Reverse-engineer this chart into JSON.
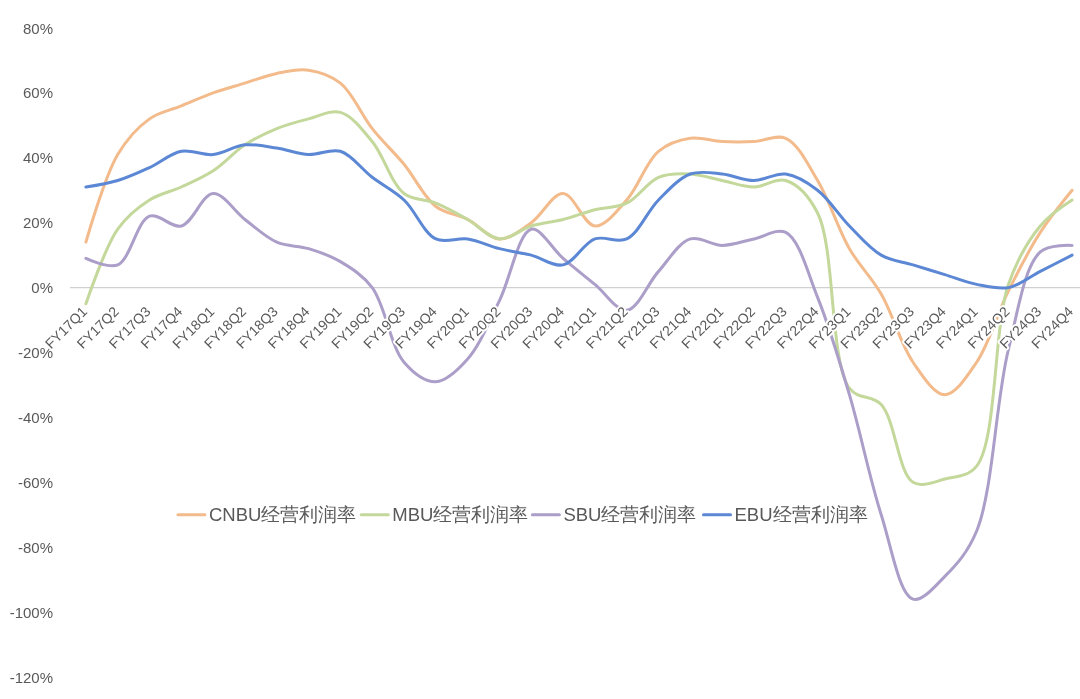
{
  "chart_data": {
    "type": "line",
    "categories": [
      "FY17Q1",
      "FY17Q2",
      "FY17Q3",
      "FY17Q4",
      "FY18Q1",
      "FY18Q2",
      "FY18Q3",
      "FY18Q4",
      "FY19Q1",
      "FY19Q2",
      "FY19Q3",
      "FY19Q4",
      "FY20Q1",
      "FY20Q2",
      "FY20Q3",
      "FY20Q4",
      "FY21Q1",
      "FY21Q2",
      "FY21Q3",
      "FY21Q4",
      "FY22Q1",
      "FY22Q2",
      "FY22Q3",
      "FY22Q4",
      "FY23Q1",
      "FY23Q2",
      "FY23Q3",
      "FY23Q4",
      "FY24Q1",
      "FY24Q2",
      "FY24Q3",
      "FY24Q4"
    ],
    "series": [
      {
        "name": "CNBU经营利润率",
        "color": "#f3bb8b",
        "values": [
          14,
          41,
          52,
          56,
          60,
          63,
          66,
          67,
          63,
          49,
          38,
          25,
          21,
          15,
          20,
          29,
          19,
          27,
          42,
          46,
          45,
          45,
          46,
          33,
          12,
          -2,
          -23,
          -33,
          -23,
          -1,
          17,
          30
        ]
      },
      {
        "name": "MBU经营利润率",
        "color": "#c3d89a",
        "values": [
          -5,
          18,
          27,
          31,
          36,
          44,
          49,
          52,
          54,
          45,
          29,
          26,
          21,
          15,
          19,
          21,
          24,
          26,
          34,
          35,
          33,
          31,
          33,
          23,
          -31,
          -36,
          -60,
          -59,
          -55,
          1,
          19,
          27
        ]
      },
      {
        "name": "SBU经营利润率",
        "color": "#ab9ec9",
        "values": [
          9,
          7,
          22,
          19,
          29,
          21,
          14,
          12,
          8,
          0,
          -23,
          -29,
          -22,
          -4,
          18,
          9,
          1,
          -7,
          5,
          15,
          13,
          15,
          17,
          -3,
          -33,
          -70,
          -96,
          -89,
          -75,
          -19,
          11,
          13
        ]
      },
      {
        "name": "EBU经营利润率",
        "color": "#5b87d4",
        "values": [
          31,
          33,
          37,
          42,
          41,
          44,
          43,
          41,
          42,
          34,
          27,
          15,
          15,
          12,
          10,
          7,
          15,
          15,
          27,
          35,
          35,
          33,
          35,
          30,
          19,
          10,
          7,
          4,
          1,
          0,
          5,
          10
        ]
      }
    ],
    "ylim": [
      -120,
      80
    ],
    "yticks": [
      {
        "value": -120,
        "label": "-120%"
      },
      {
        "value": -100,
        "label": "-100%"
      },
      {
        "value": -80,
        "label": "-80%"
      },
      {
        "value": -60,
        "label": "-60%"
      },
      {
        "value": -40,
        "label": "-40%"
      },
      {
        "value": -20,
        "label": "-20%"
      },
      {
        "value": 0,
        "label": "0%"
      },
      {
        "value": 20,
        "label": "20%"
      },
      {
        "value": 40,
        "label": "40%"
      },
      {
        "value": 60,
        "label": "60%"
      },
      {
        "value": 80,
        "label": "80%"
      }
    ],
    "legend": "bottom"
  }
}
